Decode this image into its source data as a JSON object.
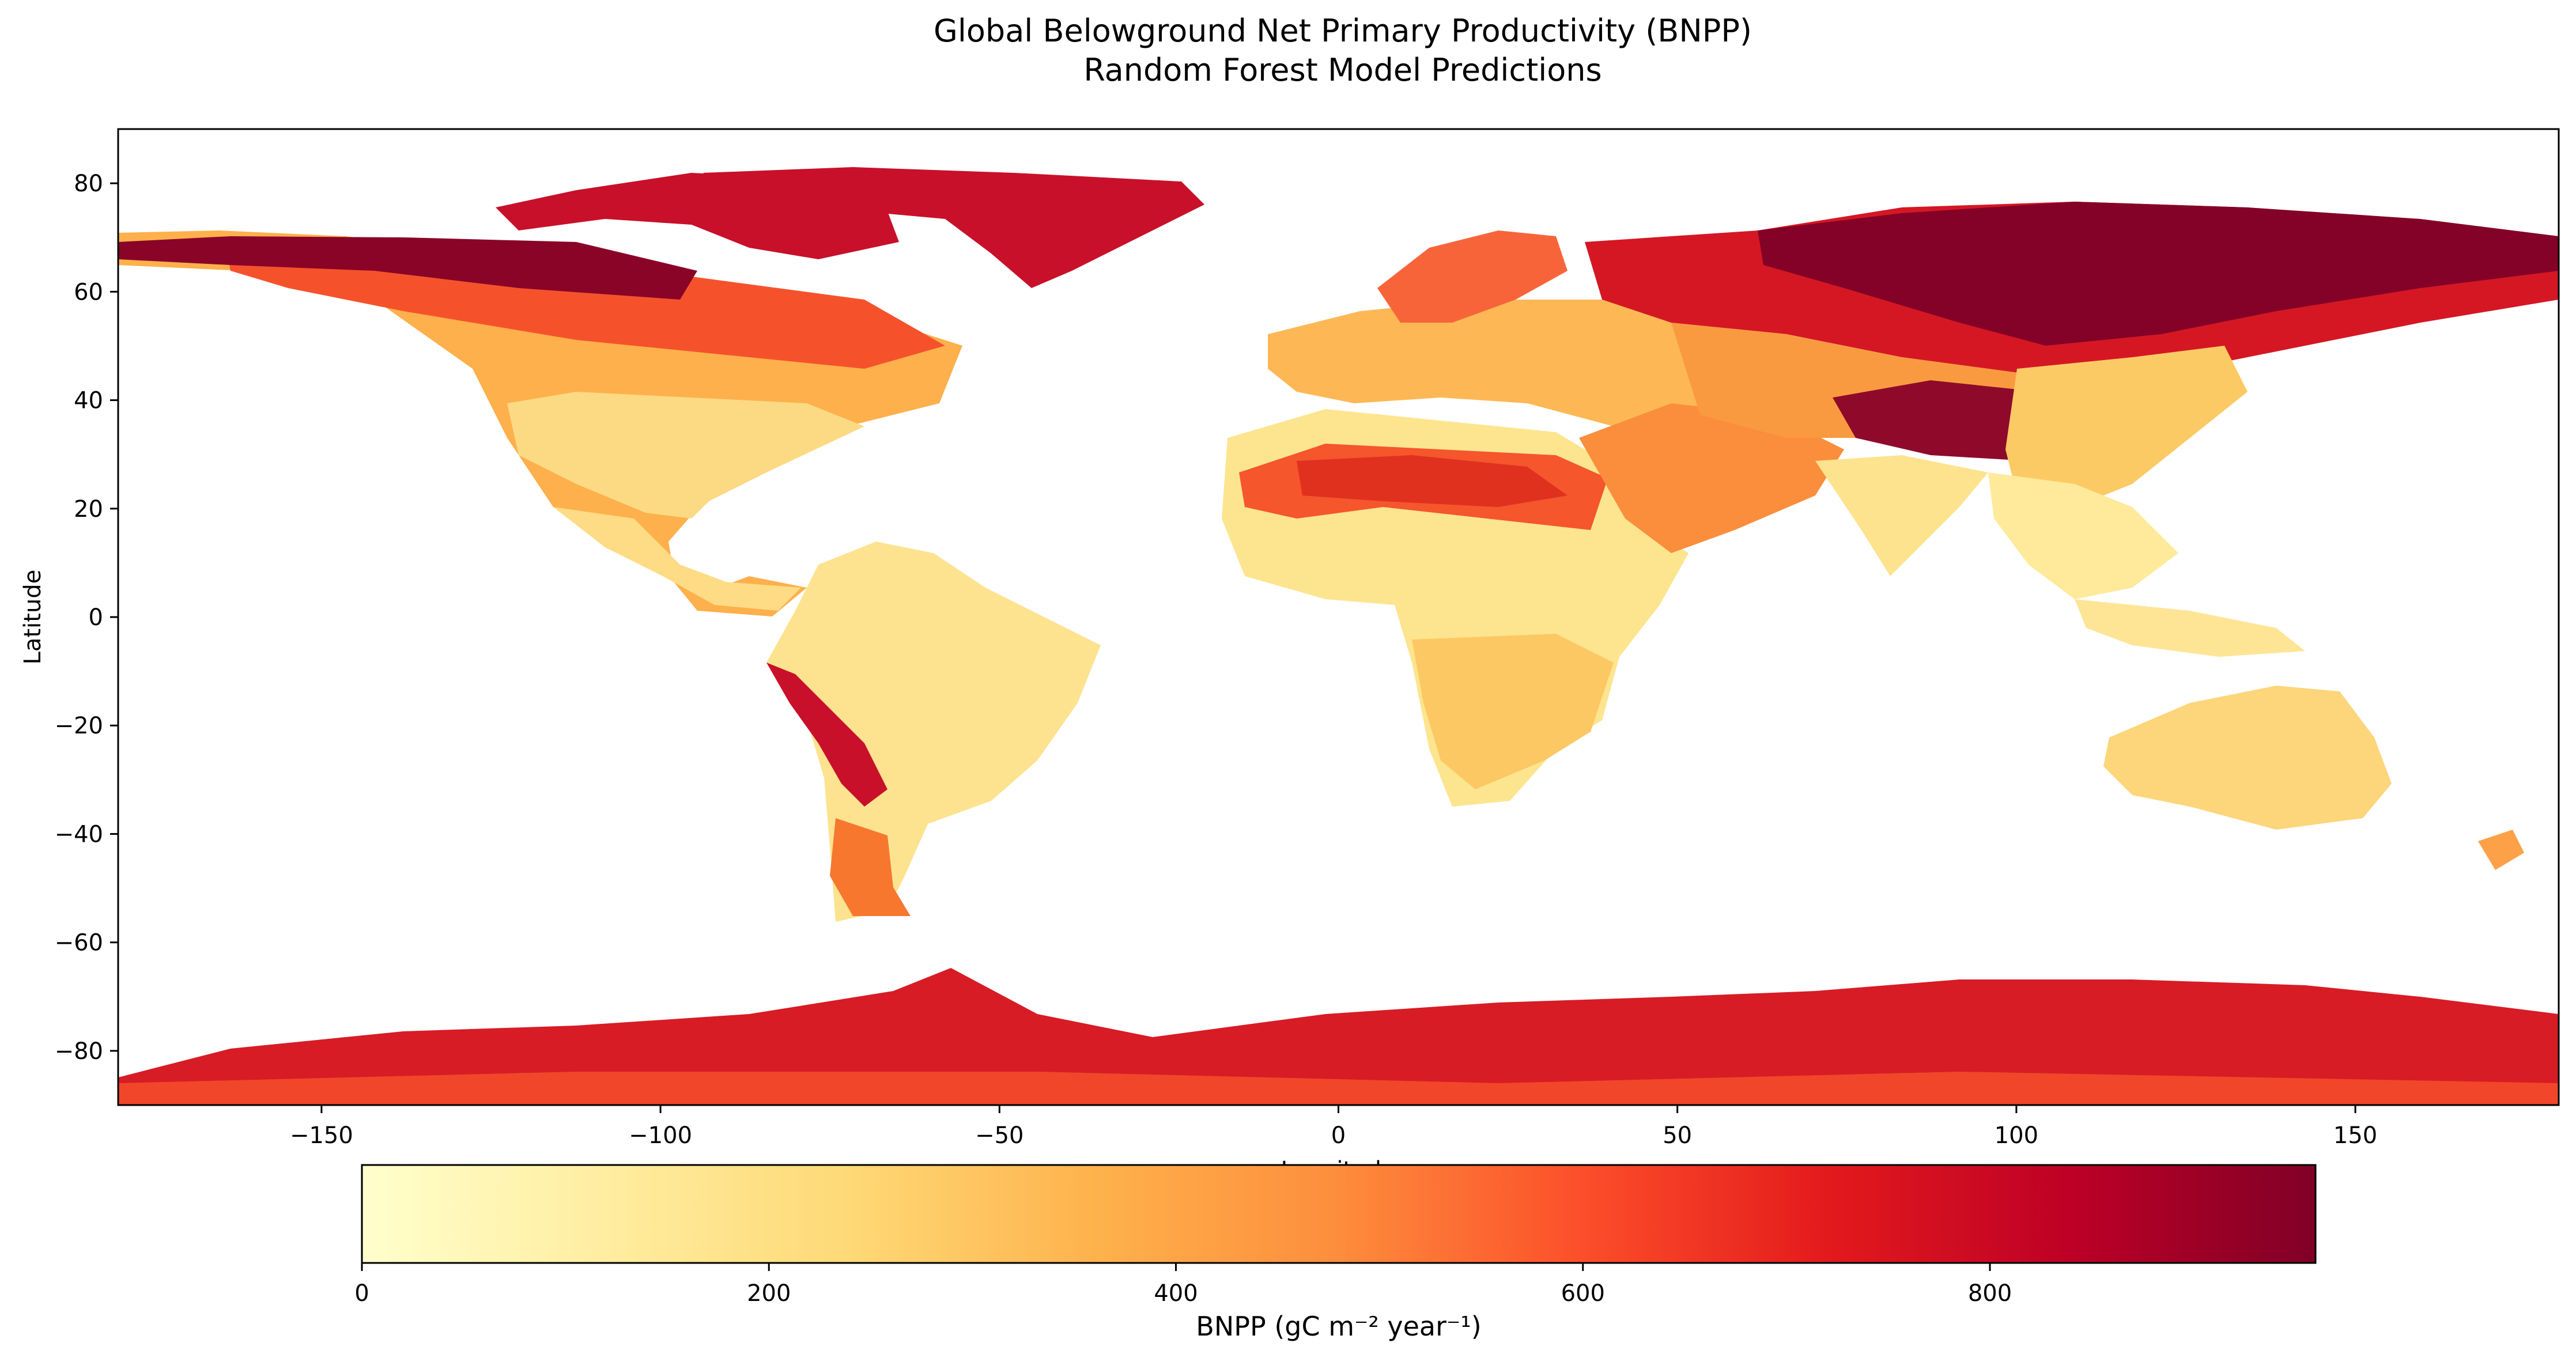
{
  "chart_data": {
    "type": "heatmap",
    "title": "Global Belowground Net Primary Productivity (BNPP)",
    "subtitle": "Random Forest Model Predictions",
    "xlabel": "Longitude",
    "ylabel": "Latitude",
    "xlim": [
      -180,
      180
    ],
    "ylim": [
      -90,
      90
    ],
    "x_ticks": [
      -150,
      -100,
      -50,
      0,
      50,
      100,
      150
    ],
    "x_tick_labels": [
      "−150",
      "−100",
      "−50",
      "0",
      "50",
      "100",
      "150"
    ],
    "y_ticks": [
      80,
      60,
      40,
      20,
      0,
      -20,
      -40,
      -60,
      -80
    ],
    "y_tick_labels": [
      "80",
      "60",
      "40",
      "20",
      "0",
      "−20",
      "−40",
      "−60",
      "−80"
    ],
    "colormap": "YlOrRd",
    "colormap_stops": [
      "#ffffcc",
      "#ffeda0",
      "#fed976",
      "#feb24c",
      "#fd8d3c",
      "#fc4e2a",
      "#e31a1c",
      "#bd0026",
      "#800026"
    ],
    "colorbar": {
      "label": "BNPP (gC m⁻² year⁻¹)",
      "range": [
        0,
        960
      ],
      "ticks": [
        0,
        200,
        400,
        600,
        800
      ],
      "tick_labels": [
        "0",
        "200",
        "400",
        "600",
        "800"
      ],
      "orientation": "horizontal"
    },
    "regions": [
      {
        "name": "Siberia / Arctic Russia",
        "approx_bnpp": 900
      },
      {
        "name": "Northern Canada / Alaska",
        "approx_bnpp": 850
      },
      {
        "name": "Greenland",
        "approx_bnpp": 780
      },
      {
        "name": "Antarctica",
        "approx_bnpp": 700
      },
      {
        "name": "Sahara",
        "approx_bnpp": 560
      },
      {
        "name": "Tibetan Plateau",
        "approx_bnpp": 850
      },
      {
        "name": "Andes",
        "approx_bnpp": 800
      },
      {
        "name": "Boreal Russia",
        "approx_bnpp": 600
      },
      {
        "name": "Boreal Canada",
        "approx_bnpp": 480
      },
      {
        "name": "Europe",
        "approx_bnpp": 330
      },
      {
        "name": "USA",
        "approx_bnpp": 250
      },
      {
        "name": "Amazon",
        "approx_bnpp": 120
      },
      {
        "name": "Central Africa",
        "approx_bnpp": 130
      },
      {
        "name": "Southern Africa",
        "approx_bnpp": 230
      },
      {
        "name": "Australia",
        "approx_bnpp": 230
      },
      {
        "name": "India",
        "approx_bnpp": 190
      },
      {
        "name": "Southeast Asia",
        "approx_bnpp": 150
      },
      {
        "name": "Patagonia",
        "approx_bnpp": 430
      }
    ]
  }
}
